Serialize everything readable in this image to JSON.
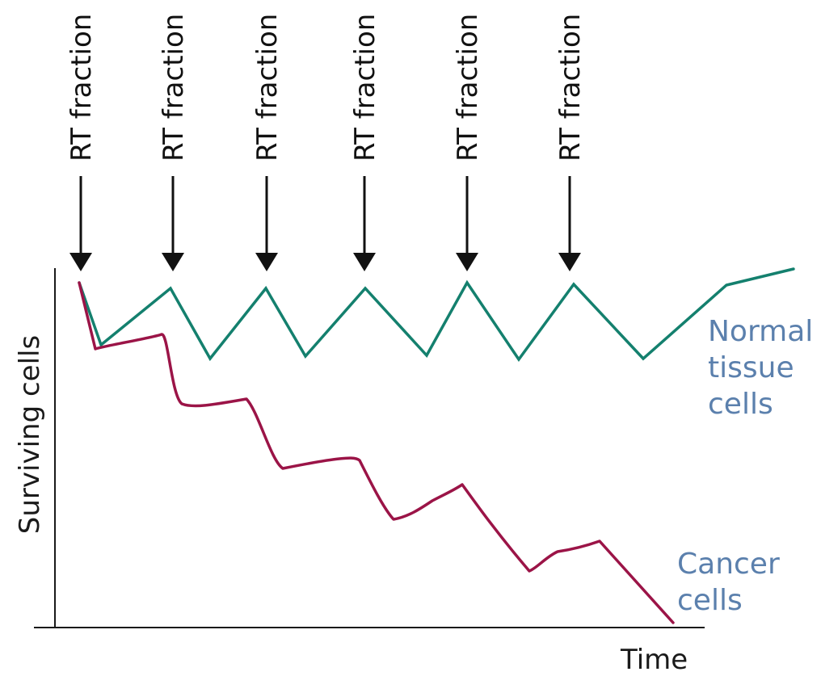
{
  "diagram": {
    "rt_label": "RT fraction",
    "y_axis_label": "Surviving cells",
    "x_axis_label": "Time",
    "normal_label": [
      "Normal",
      "tissue",
      "cells"
    ],
    "cancer_label": [
      "Cancer",
      "cells"
    ],
    "colors": {
      "normal_curve": "#14806e",
      "cancer_curve": "#9b1447",
      "series_label": "#5b80ad",
      "axes": "#1a1a1a",
      "arrow": "#111111"
    }
  }
}
